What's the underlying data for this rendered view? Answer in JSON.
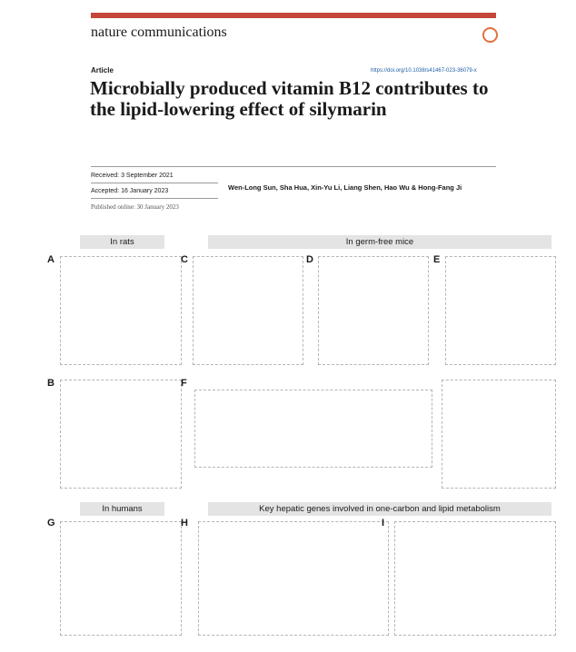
{
  "journal": "nature communications",
  "article_type": "Article",
  "doi": "https://doi.org/10.1038/s41467-023-36079-x",
  "title": "Microbially produced vitamin B12 contributes to the lipid-lowering effect of silymarin",
  "received": "Received: 3 September 2021",
  "accepted": "Accepted: 16 January 2023",
  "published": "Published online: 30 January 2023",
  "authors": "Wen-Long Sun, Sha Hua, Xin-Yu Li, Liang Shen, Hao Wu & Hong-Fang Ji",
  "sections": {
    "rats": "In rats",
    "germ_free": "In germ-free mice",
    "humans": "In humans",
    "genes": "Key hepatic genes involved in one-carbon and lipid metabolism"
  },
  "panels": [
    "A",
    "B",
    "C",
    "D",
    "E",
    "F",
    "G",
    "H",
    "I"
  ]
}
